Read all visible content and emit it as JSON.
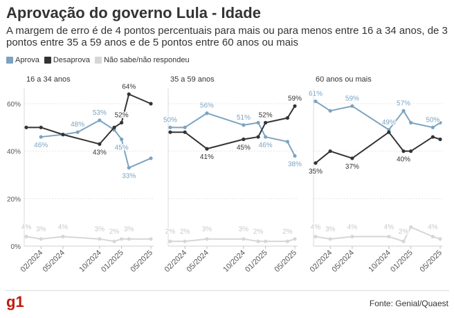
{
  "header": {
    "title": "Aprovação do governo Lula - Idade",
    "subtitle": "A margem de erro é de 4 pontos percentuais para mais ou para menos entre 16 a 34 anos, de 3 pontos entre 35 a 59 anos e de 5 pontos entre 60 anos ou mais"
  },
  "footer": {
    "source": "Fonte: Genial/Quaest",
    "logo_text": "g1"
  },
  "colors": {
    "aprova": "#7ba3c0",
    "desaprova": "#333333",
    "nao_sabe": "#d6d6d6"
  },
  "chart_data": {
    "type": "line",
    "legend": [
      "Aprova",
      "Desaprova",
      "Não sabe/não respondeu"
    ],
    "legend_position": "top-left",
    "y_ticks": [
      "0%",
      "20%",
      "40%",
      "60%"
    ],
    "ylim": [
      0,
      65
    ],
    "x_tick_labels": [
      "02/2024",
      "05/2024",
      "10/2024",
      "01/2025",
      "05/2025"
    ],
    "x_tick_dates": [
      "2024-02",
      "2024-05",
      "2024-10",
      "2025-01",
      "2025-05"
    ],
    "x": [
      "2023-12",
      "2024-02",
      "2024-04",
      "2024-07",
      "2024-10",
      "2024-12",
      "2025-01",
      "2025-02",
      "2025-04",
      "2025-05"
    ],
    "grid": true,
    "panels": [
      {
        "title": "16 a 34 anos",
        "series": [
          {
            "name": "Aprova",
            "values": [
              46,
              47,
              48,
              53,
              49,
              45,
              33,
              37
            ],
            "x": [
              "2024-02",
              "2024-05",
              "2024-07",
              "2024-10",
              "2024-12",
              "2025-01",
              "2025-02",
              "2025-05"
            ],
            "labels": [
              {
                "i": 0,
                "text": "46%"
              },
              {
                "i": 2,
                "text": "48%"
              },
              {
                "i": 3,
                "text": "53%"
              },
              {
                "i": 5,
                "text": "45%"
              },
              {
                "i": 6,
                "text": "33%"
              }
            ]
          },
          {
            "name": "Desaprova",
            "values": [
              50,
              50,
              47,
              43,
              50,
              52,
              64,
              60
            ],
            "x": [
              "2023-12",
              "2024-02",
              "2024-05",
              "2024-10",
              "2024-12",
              "2025-01",
              "2025-02",
              "2025-05"
            ],
            "labels": [
              {
                "i": 3,
                "text": "43%"
              },
              {
                "i": 5,
                "text": "52%"
              },
              {
                "i": 6,
                "text": "64%"
              }
            ]
          },
          {
            "name": "Não sabe/não respondeu",
            "values": [
              4,
              3,
              4,
              3,
              2,
              3,
              3,
              3
            ],
            "x": [
              "2023-12",
              "2024-02",
              "2024-05",
              "2024-10",
              "2024-12",
              "2025-01",
              "2025-02",
              "2025-05"
            ],
            "labels": [
              {
                "i": 0,
                "text": "4%"
              },
              {
                "i": 1,
                "text": "3%"
              },
              {
                "i": 2,
                "text": "4%"
              },
              {
                "i": 3,
                "text": "3%"
              },
              {
                "i": 4,
                "text": "2%"
              },
              {
                "i": 6,
                "text": "3%"
              }
            ]
          }
        ]
      },
      {
        "title": "35 a 59 anos",
        "series": [
          {
            "name": "Aprova",
            "values": [
              50,
              50,
              56,
              51,
              52,
              46,
              44,
              38
            ],
            "x": [
              "2023-12",
              "2024-02",
              "2024-05",
              "2024-10",
              "2024-12",
              "2025-01",
              "2025-04",
              "2025-05"
            ],
            "labels": [
              {
                "i": 0,
                "text": "50%"
              },
              {
                "i": 2,
                "text": "56%"
              },
              {
                "i": 3,
                "text": "51%"
              },
              {
                "i": 5,
                "text": "46%"
              },
              {
                "i": 7,
                "text": "38%"
              }
            ]
          },
          {
            "name": "Desaprova",
            "values": [
              48,
              48,
              41,
              45,
              46,
              52,
              54,
              59
            ],
            "x": [
              "2023-12",
              "2024-02",
              "2024-05",
              "2024-10",
              "2024-12",
              "2025-01",
              "2025-04",
              "2025-05"
            ],
            "labels": [
              {
                "i": 2,
                "text": "41%"
              },
              {
                "i": 3,
                "text": "45%"
              },
              {
                "i": 5,
                "text": "52%"
              },
              {
                "i": 7,
                "text": "59%"
              }
            ]
          },
          {
            "name": "Não sabe/não respondeu",
            "values": [
              2,
              2,
              3,
              3,
              2,
              2,
              2,
              3
            ],
            "x": [
              "2023-12",
              "2024-02",
              "2024-05",
              "2024-10",
              "2024-12",
              "2025-01",
              "2025-04",
              "2025-05"
            ],
            "labels": [
              {
                "i": 0,
                "text": "2%"
              },
              {
                "i": 1,
                "text": "2%"
              },
              {
                "i": 2,
                "text": "3%"
              },
              {
                "i": 3,
                "text": "3%"
              },
              {
                "i": 4,
                "text": "2%"
              },
              {
                "i": 6,
                "text": "2%"
              }
            ]
          }
        ]
      },
      {
        "title": "60 anos ou mais",
        "series": [
          {
            "name": "Aprova",
            "values": [
              61,
              57,
              59,
              49,
              57,
              52,
              50,
              52
            ],
            "x": [
              "2023-12",
              "2024-02",
              "2024-05",
              "2024-10",
              "2024-12",
              "2025-01",
              "2025-04",
              "2025-05"
            ],
            "labels": [
              {
                "i": 0,
                "text": "61%"
              },
              {
                "i": 2,
                "text": "59%"
              },
              {
                "i": 3,
                "text": "49%"
              },
              {
                "i": 4,
                "text": "57%"
              },
              {
                "i": 6,
                "text": "50%"
              }
            ]
          },
          {
            "name": "Desaprova",
            "values": [
              35,
              40,
              37,
              48,
              40,
              40,
              46,
              45
            ],
            "x": [
              "2023-12",
              "2024-02",
              "2024-05",
              "2024-10",
              "2024-12",
              "2025-01",
              "2025-04",
              "2025-05"
            ],
            "labels": [
              {
                "i": 0,
                "text": "35%"
              },
              {
                "i": 2,
                "text": "37%"
              },
              {
                "i": 4,
                "text": "40%"
              }
            ]
          },
          {
            "name": "Não sabe/não respondeu",
            "values": [
              4,
              3,
              4,
              4,
              2,
              8,
              4,
              3
            ],
            "x": [
              "2023-12",
              "2024-02",
              "2024-05",
              "2024-10",
              "2024-12",
              "2025-01",
              "2025-04",
              "2025-05"
            ],
            "labels": [
              {
                "i": 0,
                "text": "4%"
              },
              {
                "i": 1,
                "text": "3%"
              },
              {
                "i": 2,
                "text": "4%"
              },
              {
                "i": 3,
                "text": "4%"
              },
              {
                "i": 4,
                "text": "2%"
              },
              {
                "i": 6,
                "text": "4%"
              }
            ]
          }
        ]
      }
    ]
  }
}
